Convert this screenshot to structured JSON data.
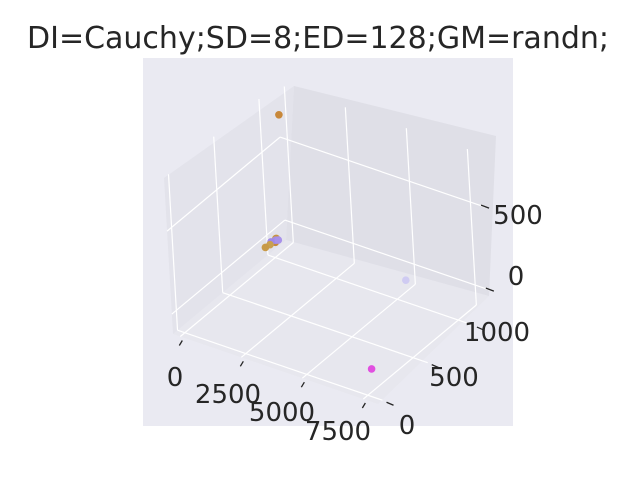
{
  "chart_data": {
    "type": "scatter",
    "projection": "3d",
    "title": "DI=Cauchy;SD=8;ED=128;GM=randn;",
    "xlabel": "",
    "ylabel": "",
    "zlabel": "",
    "grid": true,
    "x_ticks": [
      "0",
      "2500",
      "5000",
      "7500"
    ],
    "y_ticks": [
      "0",
      "500",
      "1000"
    ],
    "z_ticks": [
      "0",
      "500"
    ],
    "background": "#eaeaf2",
    "points": [
      {
        "x": 100,
        "y": 1100,
        "z": 700,
        "color": "#c8883a"
      },
      {
        "x": 5800,
        "y": 900,
        "z": 80,
        "color": "#cfcbf2"
      },
      {
        "x": 7600,
        "y": 30,
        "z": 30,
        "color": "#e150e0"
      },
      {
        "x": 150,
        "y": 980,
        "z": 10,
        "color": "#c8943c"
      },
      {
        "x": 90,
        "y": 1000,
        "z": 0,
        "color": "#c99540"
      },
      {
        "x": 200,
        "y": 960,
        "z": 0,
        "color": "#c68a3a"
      },
      {
        "x": 260,
        "y": 950,
        "z": 20,
        "color": "#a48de6"
      },
      {
        "x": 60,
        "y": 950,
        "z": 0,
        "color": "#9f88e8"
      },
      {
        "x": 130,
        "y": 920,
        "z": 0,
        "color": "#c9a050"
      },
      {
        "x": 330,
        "y": 960,
        "z": 20,
        "color": "#a891ea"
      },
      {
        "x": 90,
        "y": 880,
        "z": 0,
        "color": "#c89a48"
      }
    ]
  }
}
